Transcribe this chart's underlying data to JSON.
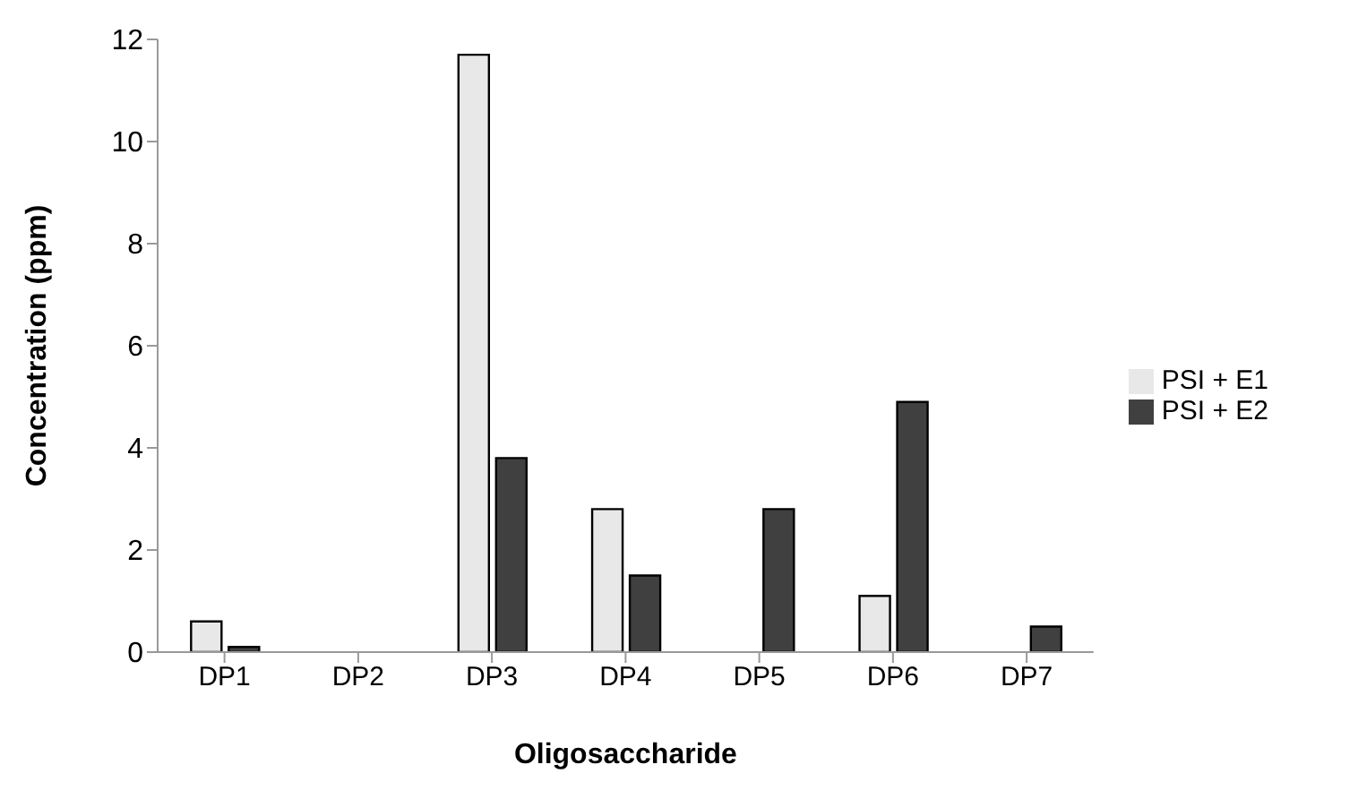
{
  "chart_data": {
    "type": "bar",
    "xlabel": "Oligosaccharide",
    "ylabel": "Concentration (ppm)",
    "categories": [
      "DP1",
      "DP2",
      "DP3",
      "DP4",
      "DP5",
      "DP6",
      "DP7"
    ],
    "series": [
      {
        "name": "PSI + E1",
        "color": "#e8e8e8",
        "values": [
          0.6,
          0,
          11.7,
          2.8,
          0,
          1.1,
          0
        ]
      },
      {
        "name": "PSI + E2",
        "color": "#404040",
        "values": [
          0.1,
          0,
          3.8,
          1.5,
          2.8,
          4.9,
          0.5
        ]
      }
    ],
    "ylim": [
      0,
      12
    ],
    "yticks": [
      0,
      2,
      4,
      6,
      8,
      10,
      12
    ],
    "legend": "right"
  }
}
